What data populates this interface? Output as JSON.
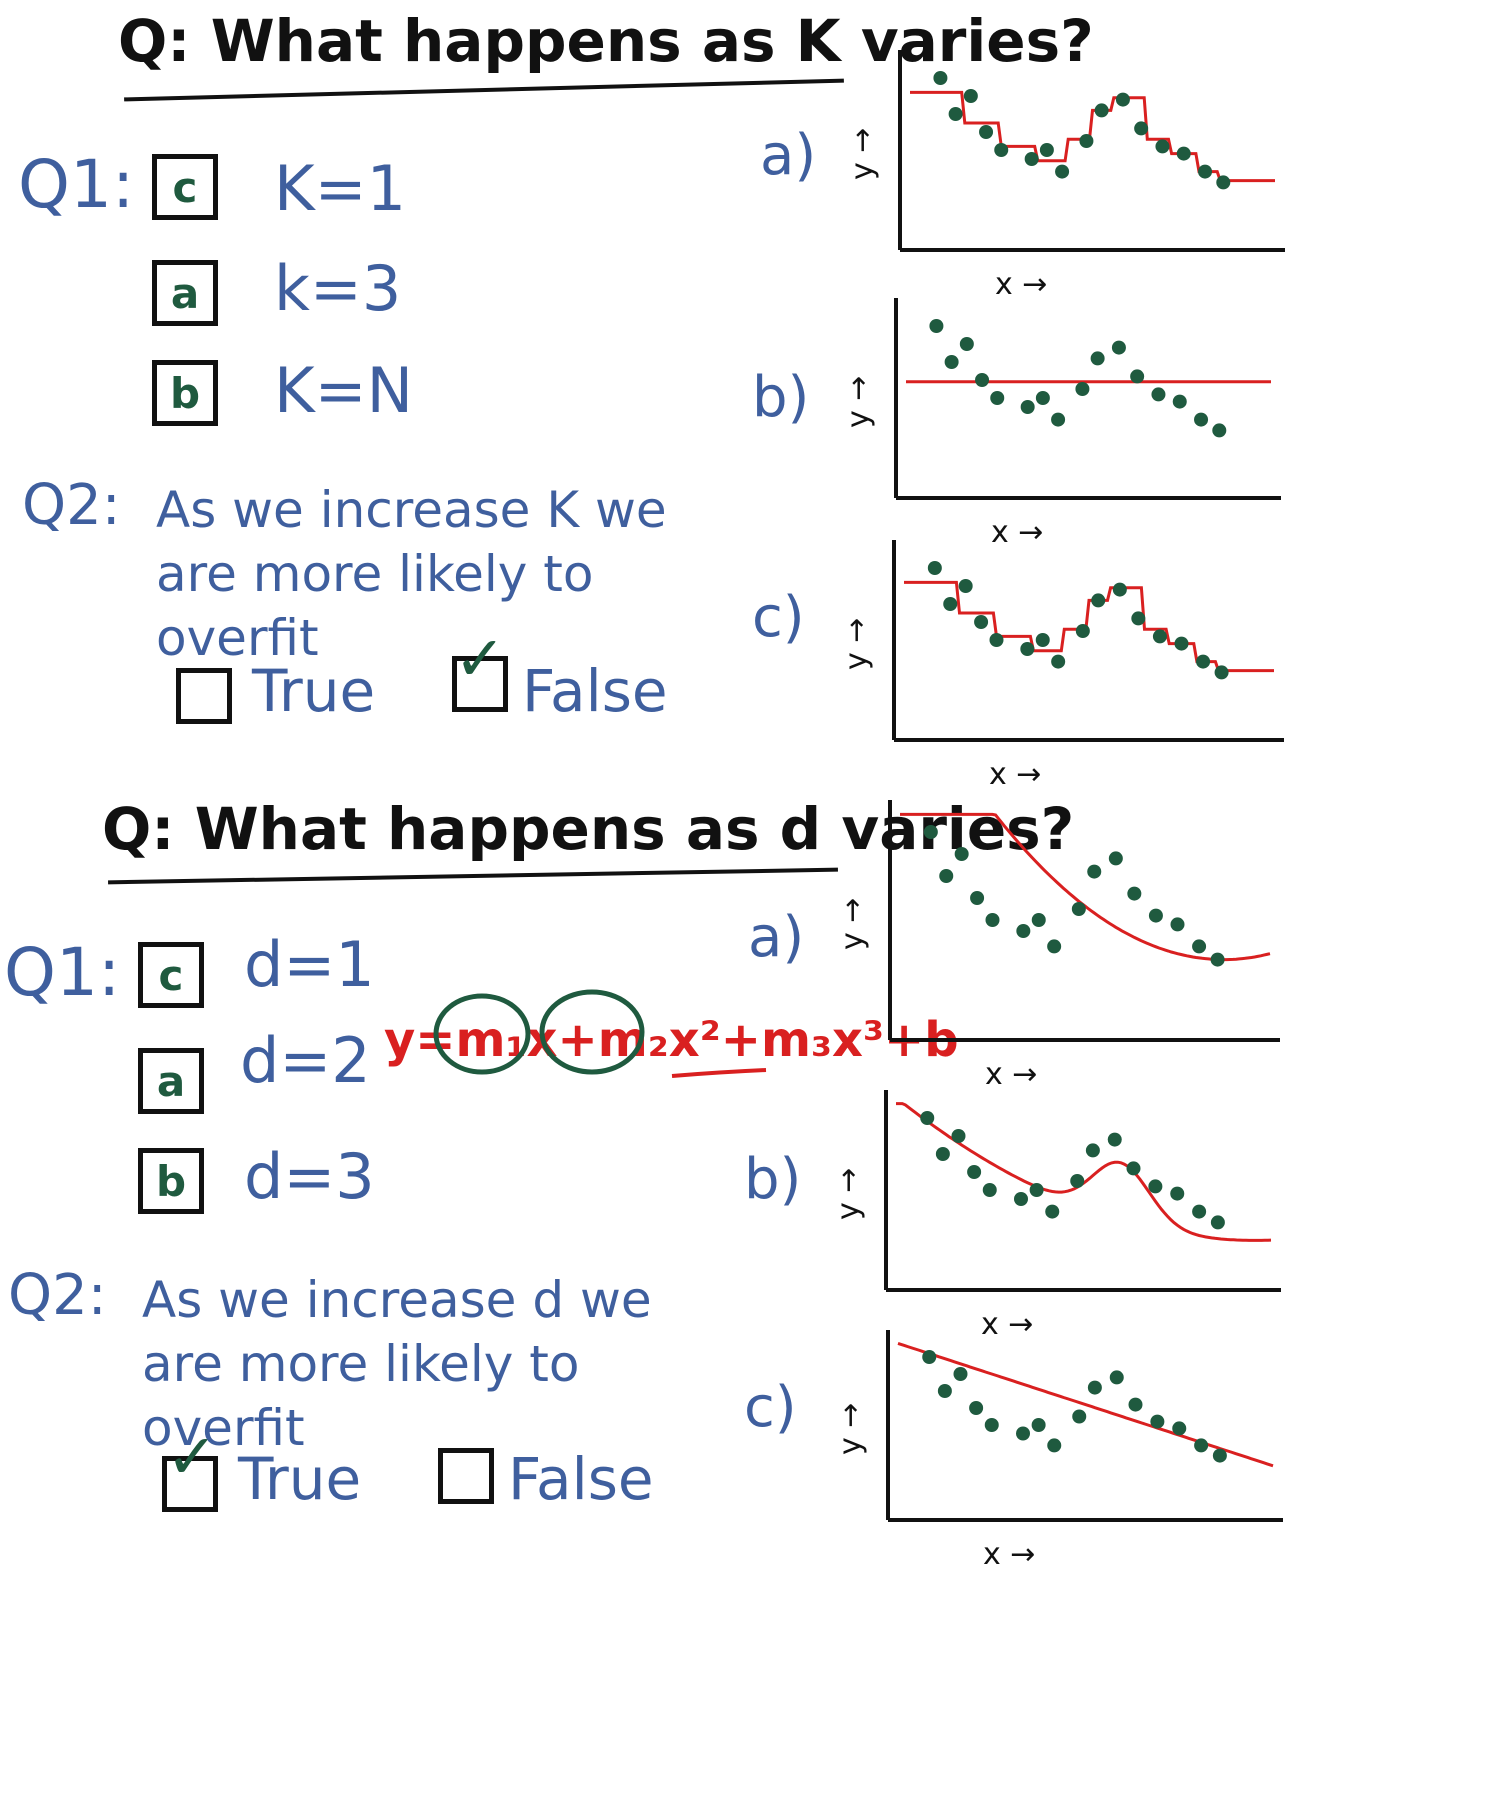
{
  "section_k": {
    "title": "Q: What happens as K varies?",
    "q1": {
      "label": "Q1:",
      "options": [
        {
          "box": "c",
          "text": "K=1"
        },
        {
          "box": "a",
          "text": "k=3"
        },
        {
          "box": "b",
          "text": "K=N"
        }
      ]
    },
    "q2": {
      "label": "Q2:",
      "text": "As we increase K we are more likely to overfit",
      "true_label": "True",
      "false_label": "False",
      "checked": "False"
    },
    "charts": [
      {
        "letter": "a)",
        "fit": "step",
        "x_label": "x →",
        "y_label": "y →"
      },
      {
        "letter": "b)",
        "fit": "flat",
        "x_label": "x →",
        "y_label": "y →"
      },
      {
        "letter": "c)",
        "fit": "step",
        "x_label": "x →",
        "y_label": "y →"
      }
    ]
  },
  "section_d": {
    "title": "Q: What happens as d varies?",
    "q1": {
      "label": "Q1:",
      "options": [
        {
          "box": "c",
          "text": "d=1"
        },
        {
          "box": "a",
          "text": "d=2"
        },
        {
          "box": "b",
          "text": "d=3"
        }
      ]
    },
    "equation": "y=m₁x+m₂x²+m₃x³+b",
    "q2": {
      "label": "Q2:",
      "text": "As we increase d we are more likely to overfit",
      "true_label": "True",
      "false_label": "False",
      "checked": "True"
    },
    "charts": [
      {
        "letter": "a)",
        "fit": "quadratic",
        "x_label": "x →",
        "y_label": "y →"
      },
      {
        "letter": "b)",
        "fit": "cubic",
        "x_label": "x →",
        "y_label": "y →"
      },
      {
        "letter": "c)",
        "fit": "linear",
        "x_label": "x →",
        "y_label": "y →"
      }
    ]
  },
  "colors": {
    "ink": "#111111",
    "blue_ink": "#3f5f9e",
    "green_ink": "#1f5a3f",
    "dot": "#1f5a3f",
    "fit_line": "#d92020"
  },
  "chart_data": [
    {
      "type": "scatter",
      "name": "K a) k=3 fit",
      "points": [
        [
          1,
          9
        ],
        [
          1.5,
          7
        ],
        [
          2,
          8
        ],
        [
          2.5,
          6
        ],
        [
          3,
          5
        ],
        [
          4,
          4
        ],
        [
          4.5,
          5
        ],
        [
          5,
          6
        ],
        [
          6,
          7
        ],
        [
          6.5,
          8
        ],
        [
          7,
          7
        ],
        [
          8,
          6
        ],
        [
          9,
          5
        ],
        [
          9.5,
          4
        ],
        [
          10,
          3.5
        ],
        [
          11,
          3
        ]
      ],
      "fit": "step"
    },
    {
      "type": "scatter",
      "name": "K b) k=N fit",
      "points": [
        [
          1,
          9
        ],
        [
          1.5,
          7
        ],
        [
          2,
          8
        ],
        [
          2.5,
          6
        ],
        [
          3,
          5
        ],
        [
          4,
          4
        ],
        [
          4.5,
          5
        ],
        [
          5,
          6
        ],
        [
          6,
          7
        ],
        [
          6.5,
          8
        ],
        [
          7,
          7
        ],
        [
          8,
          6
        ],
        [
          9,
          5
        ],
        [
          9.5,
          4
        ],
        [
          10,
          3.5
        ],
        [
          11,
          3
        ]
      ],
      "fit": "constant"
    },
    {
      "type": "scatter",
      "name": "K c) k=1 fit",
      "points": [
        [
          1,
          9
        ],
        [
          1.5,
          7
        ],
        [
          2,
          8
        ],
        [
          2.5,
          6
        ],
        [
          3,
          5
        ],
        [
          4,
          4
        ],
        [
          4.5,
          5
        ],
        [
          5,
          6
        ],
        [
          6,
          7
        ],
        [
          6.5,
          8
        ],
        [
          7,
          7
        ],
        [
          8,
          6
        ],
        [
          9,
          5
        ],
        [
          9.5,
          4
        ],
        [
          10,
          3.5
        ],
        [
          11,
          3
        ]
      ],
      "fit": "step"
    }
  ]
}
